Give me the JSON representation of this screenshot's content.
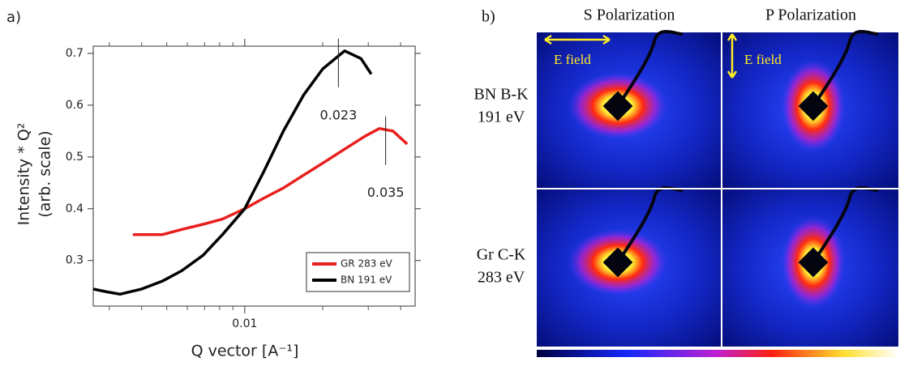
{
  "chart_data": {
    "type": "line",
    "panel_label": "a)",
    "xlabel": "Q vector [A⁻¹]",
    "ylabel": [
      "Intensity * Q²",
      "(arb. scale)"
    ],
    "xscale": "log",
    "xlim": [
      0.0026,
      0.0455
    ],
    "ylim": [
      0.212,
      0.714
    ],
    "xticks": [
      0.01
    ],
    "minor_xticks": [
      0.003,
      0.004,
      0.005,
      0.006,
      0.007,
      0.008,
      0.009,
      0.02,
      0.03,
      0.04
    ],
    "yticks": [
      0.3,
      0.4,
      0.5,
      0.6,
      0.7
    ],
    "legend": "lower right",
    "series": [
      {
        "name": "GR 283 eV",
        "color": "#e8201e",
        "x": [
          0.0037,
          0.0048,
          0.0057,
          0.0069,
          0.0082,
          0.01,
          0.0118,
          0.0141,
          0.0169,
          0.0203,
          0.0243,
          0.0291,
          0.0331,
          0.0374,
          0.0424
        ],
        "values": [
          0.35,
          0.35,
          0.36,
          0.37,
          0.38,
          0.4,
          0.42,
          0.44,
          0.465,
          0.49,
          0.515,
          0.54,
          0.555,
          0.55,
          0.525
        ]
      },
      {
        "name": "BN 191 eV",
        "color": "#000000",
        "x": [
          0.0026,
          0.0029,
          0.0033,
          0.004,
          0.0048,
          0.0057,
          0.0069,
          0.0082,
          0.01,
          0.0118,
          0.0141,
          0.0169,
          0.02,
          0.0243,
          0.0281,
          0.0308
        ],
        "values": [
          0.245,
          0.24,
          0.235,
          0.245,
          0.26,
          0.28,
          0.31,
          0.35,
          0.4,
          0.47,
          0.55,
          0.62,
          0.67,
          0.705,
          0.69,
          0.66
        ]
      }
    ],
    "annotations": [
      {
        "x": 0.023,
        "y": 0.705
      },
      {
        "x": 0.035,
        "y": 0.555
      }
    ]
  },
  "image_panel": {
    "panel_label": "b)",
    "columns": [
      "S Polarization",
      "P Polarization"
    ],
    "rows": [
      [
        "BN B-K",
        "191 eV"
      ],
      [
        "Gr C-K",
        "283 eV"
      ]
    ],
    "field_labels": [
      "E field",
      "E field"
    ]
  }
}
